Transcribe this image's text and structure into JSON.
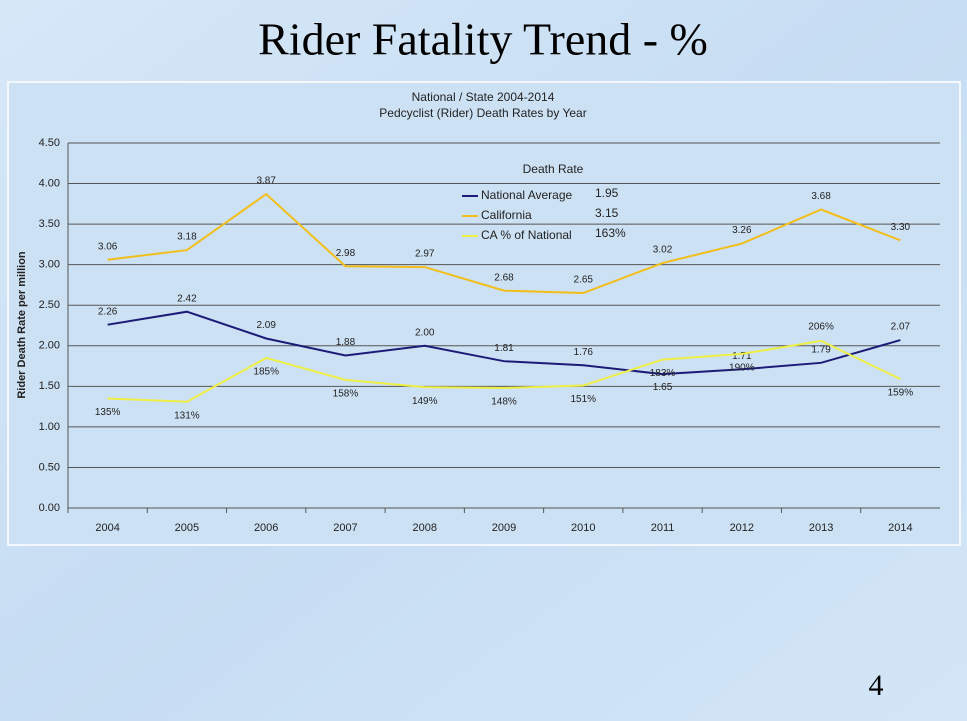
{
  "slide": {
    "title": "Rider Fatality Trend - %",
    "page_number": "4"
  },
  "chart_data": {
    "type": "line",
    "title": "National / State 2004-2014",
    "subtitle": "Pedcyclist (Rider) Death Rates by Year",
    "y_label": "Rider Death Rate per million",
    "legend_title": "Death Rate",
    "categories": [
      "2004",
      "2005",
      "2006",
      "2007",
      "2008",
      "2009",
      "2010",
      "2011",
      "2012",
      "2013",
      "2014"
    ],
    "series": [
      {
        "name": "National Average",
        "color": "#1c1c78",
        "legend_value": "1.95",
        "values": [
          2.26,
          2.42,
          2.09,
          1.88,
          2.0,
          1.81,
          1.76,
          1.65,
          1.71,
          1.79,
          2.07
        ],
        "value_labels": [
          "2.26",
          "2.42",
          "2.09",
          "1.88",
          "2.00",
          "1.81",
          "1.76",
          "1.65",
          "1.71",
          "1.79",
          "2.07"
        ]
      },
      {
        "name": "California",
        "color": "#f2be1a",
        "legend_value": "3.15",
        "values": [
          3.06,
          3.18,
          3.87,
          2.98,
          2.97,
          2.68,
          2.65,
          3.02,
          3.26,
          3.68,
          3.3
        ],
        "value_labels": [
          "3.06",
          "3.18",
          "3.87",
          "2.98",
          "2.97",
          "2.68",
          "2.65",
          "3.02",
          "3.26",
          "3.68",
          "3.30"
        ]
      },
      {
        "name": "CA % of National",
        "color": "#eeee44",
        "legend_value": "163%",
        "values": [
          1.35,
          1.31,
          1.85,
          1.58,
          1.49,
          1.48,
          1.51,
          1.83,
          1.9,
          2.06,
          1.59
        ],
        "value_labels": [
          "135%",
          "131%",
          "185%",
          "158%",
          "149%",
          "148%",
          "151%",
          "183%",
          "190%",
          "206%",
          "159%"
        ]
      }
    ],
    "ylim": [
      0,
      4.5
    ],
    "yticks": [
      {
        "value": 0,
        "label": "0.00"
      },
      {
        "value": 0.5,
        "label": "0.50"
      },
      {
        "value": 1,
        "label": "1.00"
      },
      {
        "value": 1.5,
        "label": "1.50"
      },
      {
        "value": 2,
        "label": "2.00"
      },
      {
        "value": 2.5,
        "label": "2.50"
      },
      {
        "value": 3,
        "label": "3.00"
      },
      {
        "value": 3.5,
        "label": "3.50"
      },
      {
        "value": 4,
        "label": "4.00"
      },
      {
        "value": 4.5,
        "label": "4.50"
      }
    ],
    "grid": true
  }
}
